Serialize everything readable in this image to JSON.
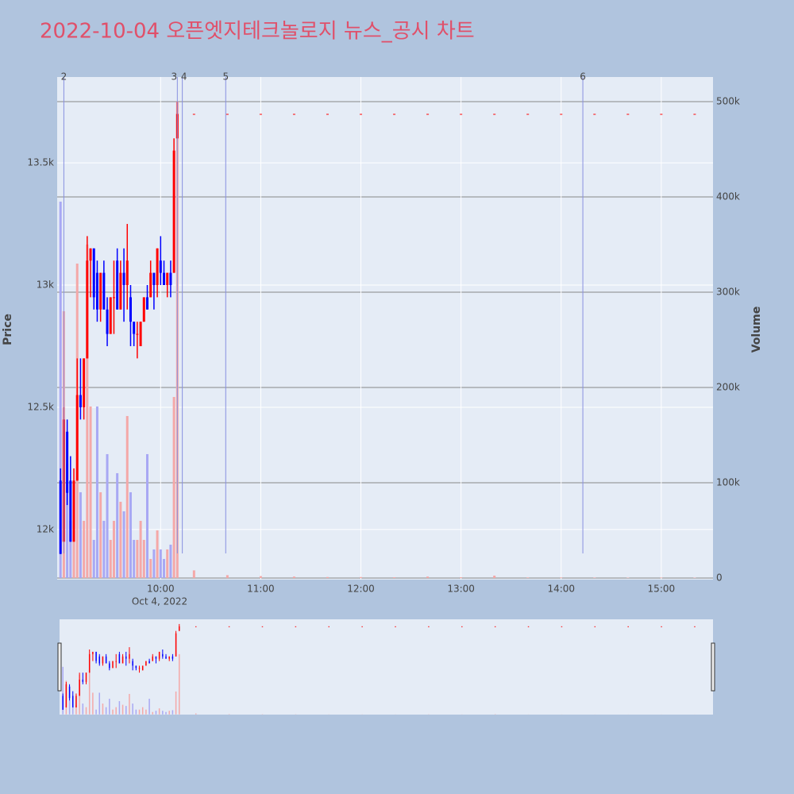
{
  "chart_data": {
    "type": "candlestick",
    "title": "2022-10-04 오픈엣지테크놀로지 뉴스_공시 차트",
    "y_label": "Price",
    "y2_label": "Volume",
    "x_date_label": "Oct 4, 2022",
    "increasing_color": "#ff0000",
    "decreasing_color": "#0000ff",
    "volume_increasing_color": "#f4a8a8",
    "volume_decreasing_color": "#a8a8f4",
    "x": [
      "2022-10-04 09:00",
      "2022-10-04 09:02",
      "2022-10-04 09:04",
      "2022-10-04 09:06",
      "2022-10-04 09:08",
      "2022-10-04 09:10",
      "2022-10-04 09:12",
      "2022-10-04 09:14",
      "2022-10-04 09:16",
      "2022-10-04 09:18",
      "2022-10-04 09:20",
      "2022-10-04 09:22",
      "2022-10-04 09:24",
      "2022-10-04 09:26",
      "2022-10-04 09:28",
      "2022-10-04 09:30",
      "2022-10-04 09:32",
      "2022-10-04 09:34",
      "2022-10-04 09:36",
      "2022-10-04 09:38",
      "2022-10-04 09:40",
      "2022-10-04 09:42",
      "2022-10-04 09:44",
      "2022-10-04 09:46",
      "2022-10-04 09:48",
      "2022-10-04 09:50",
      "2022-10-04 09:52",
      "2022-10-04 09:54",
      "2022-10-04 09:56",
      "2022-10-04 09:58",
      "2022-10-04 10:00",
      "2022-10-04 10:02",
      "2022-10-04 10:04",
      "2022-10-04 10:06",
      "2022-10-04 10:08",
      "2022-10-04 10:10",
      "2022-10-04 10:20",
      "2022-10-04 10:40",
      "2022-10-04 11:00",
      "2022-10-04 11:20",
      "2022-10-04 11:40",
      "2022-10-04 12:00",
      "2022-10-04 12:20",
      "2022-10-04 12:40",
      "2022-10-04 13:00",
      "2022-10-04 13:20",
      "2022-10-04 13:40",
      "2022-10-04 14:00",
      "2022-10-04 14:20",
      "2022-10-04 14:40",
      "2022-10-04 15:00",
      "2022-10-04 15:20"
    ],
    "open": [
      12200,
      11950,
      12400,
      12200,
      11950,
      12200,
      12550,
      12500,
      12700,
      13100,
      13150,
      13050,
      12900,
      13050,
      12900,
      12800,
      12950,
      13100,
      12900,
      13050,
      13000,
      12950,
      12850,
      12800,
      12750,
      12850,
      12950,
      12950,
      13050,
      13000,
      13100,
      13050,
      13000,
      13050,
      13050,
      13600,
      13700,
      13700,
      13700,
      13700,
      13700,
      13700,
      13700,
      13700,
      13700,
      13700,
      13700,
      13700,
      13700,
      13700,
      13700,
      13700
    ],
    "high": [
      12250,
      12500,
      12450,
      12300,
      12250,
      12700,
      12700,
      12700,
      13200,
      13150,
      13150,
      13100,
      13050,
      13100,
      12950,
      12950,
      13100,
      13150,
      13100,
      13150,
      13250,
      13000,
      12850,
      12850,
      12850,
      12950,
      13000,
      13100,
      13050,
      13150,
      13200,
      13100,
      13050,
      13100,
      13600,
      13750,
      13700,
      13700,
      13700,
      13700,
      13700,
      13700,
      13700,
      13700,
      13700,
      13700,
      13700,
      13700,
      13700,
      13700,
      13700,
      13700
    ],
    "low": [
      11900,
      11950,
      12100,
      11950,
      11950,
      12200,
      12450,
      12450,
      12700,
      12950,
      12900,
      12850,
      12850,
      12900,
      12750,
      12800,
      12800,
      12900,
      12900,
      12850,
      12900,
      12750,
      12750,
      12700,
      12750,
      12850,
      12900,
      12950,
      12900,
      12950,
      13000,
      13000,
      12950,
      12950,
      13050,
      13600,
      13700,
      13700,
      13700,
      13700,
      13700,
      13700,
      13700,
      13700,
      13700,
      13700,
      13700,
      13700,
      13700,
      13700,
      13700,
      13700
    ],
    "close": [
      11900,
      12450,
      12150,
      11950,
      12200,
      12550,
      12500,
      12700,
      13100,
      13150,
      12950,
      12900,
      13050,
      12900,
      12800,
      12950,
      12950,
      12900,
      13050,
      13000,
      13100,
      12850,
      12800,
      12800,
      12850,
      12950,
      12900,
      13050,
      13000,
      13150,
      13050,
      13000,
      13050,
      13000,
      13550,
      13700,
      13700,
      13700,
      13700,
      13700,
      13700,
      13700,
      13700,
      13700,
      13700,
      13700,
      13700,
      13700,
      13700,
      13700,
      13700,
      13700
    ],
    "volume": [
      395000,
      280000,
      120000,
      60000,
      80000,
      330000,
      90000,
      60000,
      350000,
      180000,
      40000,
      180000,
      90000,
      60000,
      130000,
      40000,
      60000,
      110000,
      80000,
      70000,
      170000,
      90000,
      40000,
      40000,
      60000,
      40000,
      130000,
      20000,
      30000,
      50000,
      30000,
      20000,
      30000,
      35000,
      190000,
      500000,
      8000,
      3000,
      2000,
      1500,
      1000,
      1000,
      800,
      1500,
      800,
      2500,
      600,
      600,
      500,
      400,
      500,
      400
    ],
    "events": [
      {
        "x": "2022-10-04 09:02",
        "label": "2"
      },
      {
        "x": "2022-10-04 10:10",
        "label": "3"
      },
      {
        "x": "2022-10-04 10:13",
        "label": "4"
      },
      {
        "x": "2022-10-04 10:39",
        "label": "5"
      },
      {
        "x": "2022-10-04 14:13",
        "label": "6"
      }
    ],
    "xlim": [
      "2022-10-04 08:58",
      "2022-10-04 15:31"
    ],
    "xticks": [
      {
        "value": "2022-10-04 10:00",
        "label": "10:00"
      },
      {
        "value": "2022-10-04 11:00",
        "label": "11:00"
      },
      {
        "value": "2022-10-04 12:00",
        "label": "12:00"
      },
      {
        "value": "2022-10-04 13:00",
        "label": "13:00"
      },
      {
        "value": "2022-10-04 14:00",
        "label": "14:00"
      },
      {
        "value": "2022-10-04 15:00",
        "label": "15:00"
      }
    ],
    "ylim": [
      11795,
      13851
    ],
    "yticks": [
      {
        "value": 12000,
        "label": "12k"
      },
      {
        "value": 12500,
        "label": "12.5k"
      },
      {
        "value": 13000,
        "label": "13k"
      },
      {
        "value": 13500,
        "label": "13.5k"
      }
    ],
    "y2lim": [
      -1700,
      525800
    ],
    "y2ticks": [
      0,
      {
        "value": 100000,
        "label": "100k"
      },
      {
        "value": 200000,
        "label": "200k"
      },
      {
        "value": 300000,
        "label": "300k"
      },
      {
        "value": 400000,
        "label": "400k"
      },
      {
        "value": 500000,
        "label": "500k"
      }
    ],
    "grid": true,
    "range_slider": true
  }
}
